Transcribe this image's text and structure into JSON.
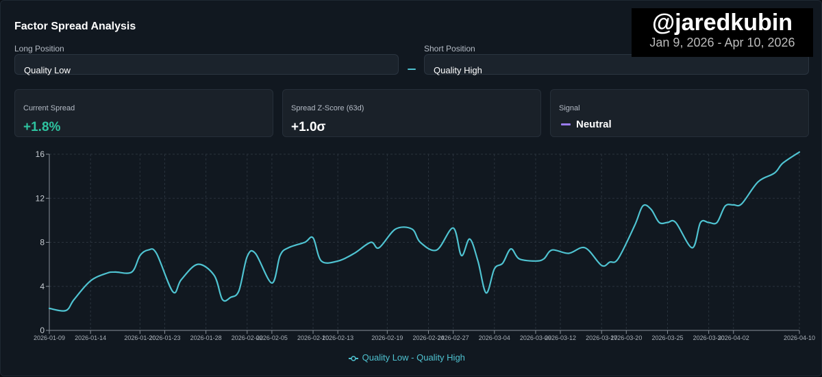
{
  "header": {
    "title": "Factor Spread Analysis"
  },
  "long_position": {
    "label": "Long Position",
    "value": "Quality Low"
  },
  "short_position": {
    "label": "Short Position",
    "value": "Quality High"
  },
  "metrics": {
    "current_spread": {
      "label": "Current Spread",
      "value": "+1.8%",
      "color": "#2ec4a0"
    },
    "zscore": {
      "label": "Spread Z-Score (63d)",
      "value": "+1.0σ"
    },
    "signal": {
      "label": "Signal",
      "value": "Neutral",
      "color": "#9b7cf2"
    }
  },
  "watermark": {
    "handle": "@jaredkubin",
    "date_range": "Jan 9, 2026 - Apr 10, 2026"
  },
  "legend": {
    "label": "Quality Low - Quality High"
  },
  "colors": {
    "line": "#4fc3d1"
  },
  "chart_data": {
    "type": "line",
    "title": "",
    "xlabel": "",
    "ylabel": "",
    "ylim": [
      0,
      16
    ],
    "yticks": [
      0,
      4,
      8,
      12,
      16
    ],
    "grid": true,
    "legend_position": "bottom-center",
    "x_tick_labels": [
      "2026-01-09",
      "2026-01-14",
      "2026-01-20",
      "2026-01-23",
      "2026-01-28",
      "2026-02-02",
      "2026-02-05",
      "2026-02-10",
      "2026-02-13",
      "2026-02-19",
      "2026-02-24",
      "2026-02-27",
      "2026-03-04",
      "2026-03-09",
      "2026-03-12",
      "2026-03-17",
      "2026-03-20",
      "2026-03-25",
      "2026-03-30",
      "2026-04-02",
      "2026-04-10"
    ],
    "x_tick_positions": [
      0,
      5,
      11,
      14,
      19,
      24,
      27,
      32,
      35,
      41,
      46,
      49,
      54,
      59,
      62,
      67,
      70,
      75,
      80,
      83,
      91
    ],
    "x_max": 91,
    "series": [
      {
        "name": "Quality Low - Quality High",
        "x": [
          0,
          2,
          3,
          5,
          7,
          8,
          10,
          11,
          12,
          13,
          15,
          16,
          18,
          20,
          21,
          22,
          23,
          24,
          25,
          27,
          28,
          29,
          31,
          32,
          33,
          35,
          37,
          39,
          40,
          42,
          44,
          45,
          47,
          49,
          50,
          51,
          52,
          53,
          54,
          55,
          56,
          57,
          59,
          60,
          61,
          63,
          65,
          67,
          68,
          69,
          71,
          72,
          73,
          74,
          75,
          76,
          78,
          79,
          80,
          81,
          82,
          83,
          84,
          86,
          88,
          89,
          91
        ],
        "values": [
          2.0,
          1.8,
          2.8,
          4.5,
          5.2,
          5.3,
          5.3,
          6.8,
          7.3,
          7.0,
          3.5,
          4.6,
          6.0,
          5.0,
          2.8,
          3.0,
          3.6,
          6.7,
          7.0,
          4.3,
          6.8,
          7.5,
          8.0,
          8.4,
          6.3,
          6.3,
          7.0,
          8.0,
          7.5,
          9.2,
          9.2,
          8.0,
          7.3,
          9.3,
          6.8,
          8.3,
          6.3,
          3.4,
          5.6,
          6.1,
          7.4,
          6.5,
          6.3,
          6.5,
          7.3,
          7.0,
          7.5,
          5.9,
          6.2,
          6.5,
          9.5,
          11.3,
          11.0,
          9.8,
          9.8,
          9.8,
          7.5,
          9.8,
          9.8,
          9.8,
          11.3,
          11.4,
          11.5,
          13.5,
          14.3,
          15.2,
          16.2
        ]
      }
    ]
  }
}
